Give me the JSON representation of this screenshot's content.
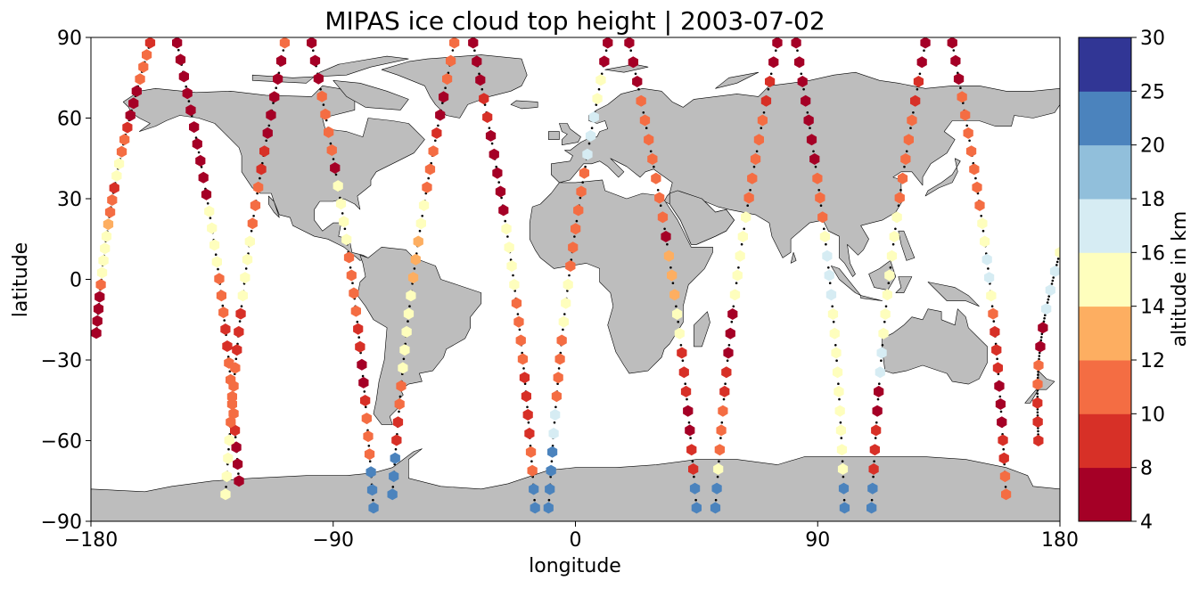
{
  "chart_data": {
    "type": "scatter",
    "title": "MIPAS ice cloud top height | 2003-07-02",
    "xlabel": "longitude",
    "ylabel": "latitude",
    "xlim": [
      -180,
      180
    ],
    "ylim": [
      -90,
      90
    ],
    "xticks": [
      -180,
      -90,
      0,
      90,
      180
    ],
    "yticks": [
      -90,
      -60,
      -30,
      0,
      30,
      60,
      90
    ],
    "xtick_labels": [
      "−180",
      "−90",
      "0",
      "90",
      "180"
    ],
    "ytick_labels": [
      "−90",
      "−60",
      "−30",
      "0",
      "30",
      "60",
      "90"
    ],
    "grid": false,
    "marker": "hexagon",
    "colorbar": {
      "label": "altitude in km",
      "bounds": [
        4,
        8,
        10,
        12,
        14,
        16,
        18,
        20,
        25,
        30
      ],
      "tick_labels": [
        "4",
        "8",
        "10",
        "12",
        "14",
        "16",
        "18",
        "20",
        "25",
        "30"
      ],
      "colors": [
        "#a50026",
        "#d73027",
        "#f46d43",
        "#fdae61",
        "#fefebd",
        "#d6ecf3",
        "#91bfdb",
        "#4b83bd",
        "#313695"
      ]
    },
    "land_color": "#bdbdbd",
    "track_dot_color": "#000000",
    "tracks": [
      {
        "lon0": -178,
        "lat0": -20,
        "lon1": -158,
        "lat1": 88,
        "heights": [
          7,
          7,
          7,
          7,
          11,
          15,
          15,
          15,
          15,
          13,
          11,
          11,
          9,
          15,
          15,
          11,
          11,
          9,
          7,
          7,
          7,
          11,
          11,
          11,
          9
        ]
      },
      {
        "lon0": -148,
        "lat0": 88,
        "lon1": -125,
        "lat1": -75,
        "heights": [
          7,
          7,
          7,
          7,
          7,
          7,
          7,
          7,
          7,
          7,
          15,
          15,
          15,
          15,
          11,
          11,
          11,
          9,
          9,
          11,
          11,
          11,
          11,
          9,
          7,
          7,
          7
        ]
      },
      {
        "lon0": -130,
        "lat0": -80,
        "lon1": -108,
        "lat1": 88,
        "heights": [
          15,
          15,
          15,
          15,
          11,
          11,
          11,
          11,
          9,
          9,
          9,
          15,
          15,
          15,
          15,
          11,
          11,
          11,
          9,
          9,
          7,
          7,
          7,
          7,
          7,
          11
        ]
      },
      {
        "lon0": -98,
        "lat0": 88,
        "lon1": -75,
        "lat1": -85,
        "heights": [
          7,
          7,
          7,
          11,
          11,
          11,
          11,
          7,
          15,
          15,
          15,
          15,
          11,
          11,
          11,
          11,
          9,
          9,
          7,
          7,
          9,
          11,
          11,
          11,
          20,
          20,
          20
        ]
      },
      {
        "lon0": -68,
        "lat0": -80,
        "lon1": -45,
        "lat1": 88,
        "heights": [
          20,
          20,
          20,
          9,
          9,
          11,
          11,
          15,
          15,
          15,
          15,
          15,
          13,
          13,
          13,
          15,
          15,
          11,
          11,
          11,
          9,
          7,
          7,
          11,
          11,
          11
        ]
      },
      {
        "lon0": -38,
        "lat0": 88,
        "lon1": -15,
        "lat1": -85,
        "heights": [
          7,
          7,
          7,
          9,
          9,
          7,
          7,
          7,
          7,
          7,
          15,
          15,
          15,
          15,
          11,
          11,
          11,
          11,
          9,
          9,
          9,
          9,
          11,
          11,
          20,
          20
        ]
      },
      {
        "lon0": -10,
        "lat0": -85,
        "lon1": 12,
        "lat1": 88,
        "heights": [
          20,
          20,
          20,
          20,
          17,
          17,
          11,
          11,
          11,
          11,
          15,
          15,
          15,
          11,
          11,
          11,
          11,
          11,
          11,
          17,
          17,
          17,
          15,
          15,
          7,
          7
        ]
      },
      {
        "lon0": 20,
        "lat0": 88,
        "lon1": 45,
        "lat1": -85,
        "heights": [
          7,
          7,
          7,
          11,
          11,
          11,
          11,
          11,
          11,
          11,
          7,
          13,
          13,
          13,
          15,
          15,
          9,
          9,
          9,
          7,
          7,
          9,
          9,
          20,
          20
        ]
      },
      {
        "lon0": 52,
        "lat0": -85,
        "lon1": 75,
        "lat1": 88,
        "heights": [
          20,
          20,
          15,
          11,
          11,
          11,
          9,
          9,
          7,
          7,
          7,
          15,
          15,
          15,
          15,
          15,
          11,
          11,
          11,
          11,
          11,
          9,
          9,
          7,
          7
        ]
      },
      {
        "lon0": 82,
        "lat0": 88,
        "lon1": 100,
        "lat1": -85,
        "heights": [
          7,
          7,
          7,
          7,
          7,
          7,
          7,
          11,
          11,
          11,
          15,
          17,
          17,
          17,
          15,
          15,
          15,
          15,
          15,
          15,
          15,
          15,
          15,
          20,
          20
        ]
      },
      {
        "lon0": 110,
        "lat0": -85,
        "lon1": 130,
        "lat1": 88,
        "heights": [
          20,
          20,
          9,
          9,
          9,
          7,
          7,
          17,
          17,
          15,
          15,
          15,
          15,
          15,
          15,
          15,
          11,
          11,
          11,
          11,
          11,
          9,
          9,
          7,
          7
        ]
      },
      {
        "lon0": 140,
        "lat0": 88,
        "lon1": 160,
        "lat1": -80,
        "heights": [
          7,
          7,
          7,
          11,
          11,
          11,
          11,
          11,
          11,
          11,
          15,
          15,
          17,
          17,
          15,
          11,
          9,
          9,
          9,
          7,
          7,
          7,
          9,
          9,
          11,
          11
        ]
      },
      {
        "lon0": 172,
        "lat0": -60,
        "lon1": 180,
        "lat1": 10,
        "heights": [
          9,
          9,
          9,
          11,
          11,
          7,
          7,
          17,
          17,
          17,
          15
        ]
      }
    ]
  }
}
